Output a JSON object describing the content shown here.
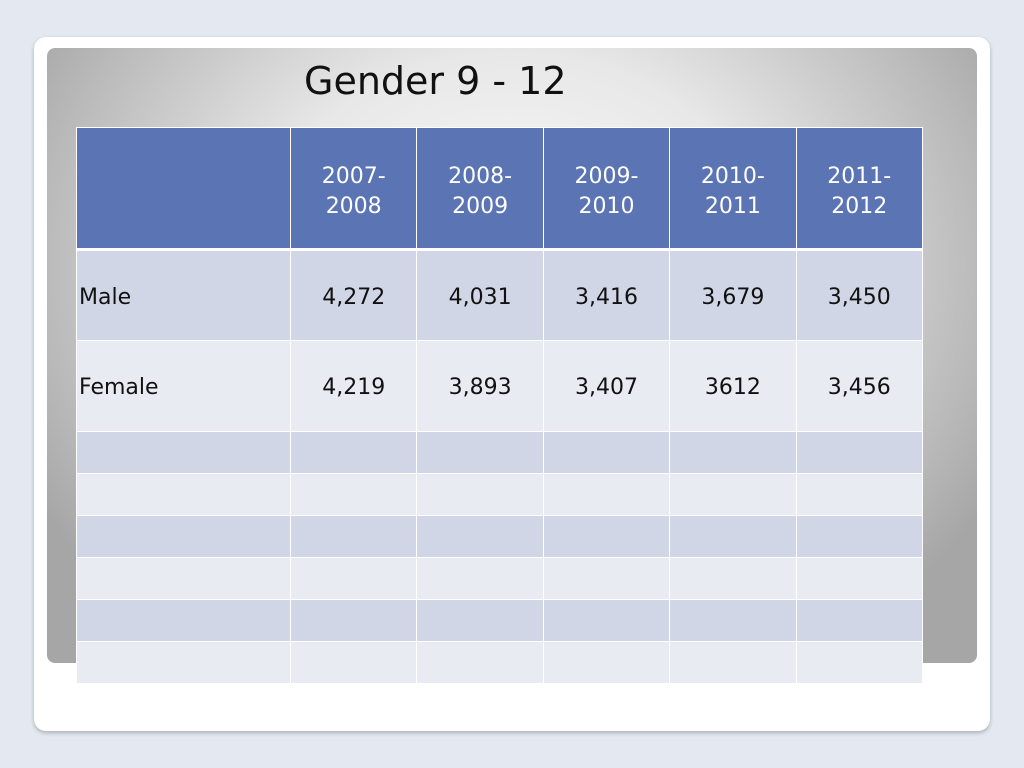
{
  "slide": {
    "title": "Gender 9 - 12"
  },
  "table": {
    "corner": "",
    "headers": [
      [
        "2007-",
        "2008"
      ],
      [
        "2008-",
        "2009"
      ],
      [
        "2009-",
        "2010"
      ],
      [
        "2010-",
        "2011"
      ],
      [
        "2011-",
        "2012"
      ]
    ],
    "rows": [
      {
        "label": "Male",
        "values": [
          "4,272",
          "4,031",
          "3,416",
          "3,679",
          "3,450"
        ]
      },
      {
        "label": "Female",
        "values": [
          "4,219",
          "3,893",
          "3,407",
          "3612",
          "3,456"
        ]
      }
    ]
  },
  "colors": {
    "header_bg": "#5b74b4",
    "row_band_dark": "#d1d6e6",
    "row_band_light": "#e9ebf2"
  }
}
